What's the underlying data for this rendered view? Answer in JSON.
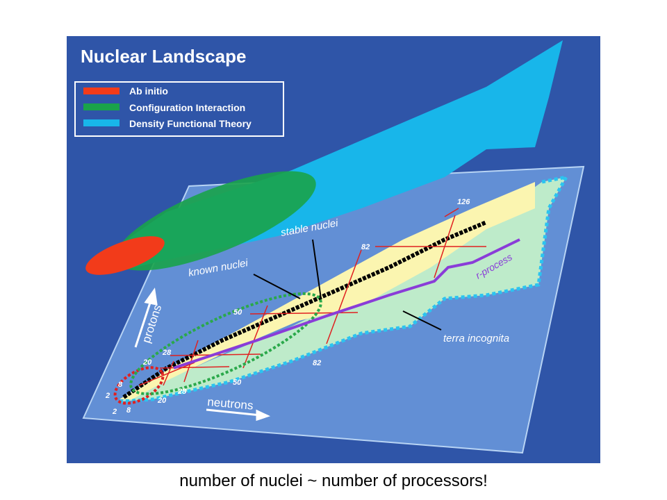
{
  "title": "Nuclear Landscape",
  "legend": [
    {
      "label": "Ab initio"
    },
    {
      "label": "Configuration Interaction"
    },
    {
      "label": "Density Functional Theory"
    }
  ],
  "annotations": {
    "stable": "stable nuclei",
    "known": "known nuclei",
    "rprocess": "r-process",
    "terra": "terra incognita"
  },
  "axes": {
    "protons": "protons",
    "neutrons": "neutrons"
  },
  "proton_magic": [
    "2",
    "8",
    "20",
    "28",
    "50",
    "82",
    "126"
  ],
  "neutron_magic": [
    "2",
    "8",
    "20",
    "28",
    "50",
    "82"
  ],
  "caption": "number of nuclei ~ number of processors!"
}
